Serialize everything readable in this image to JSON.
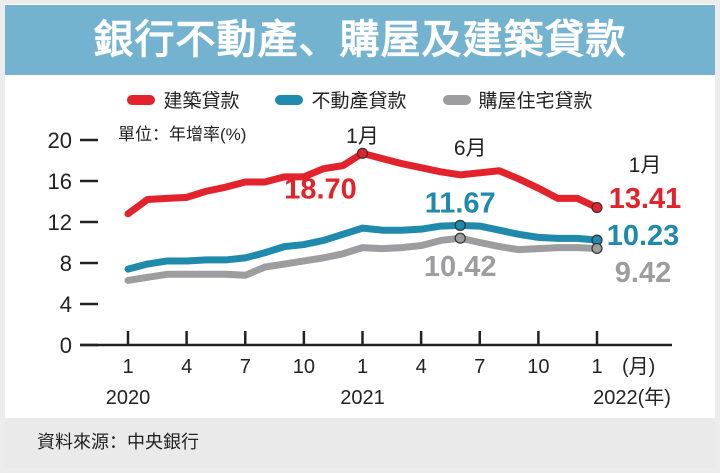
{
  "title": "銀行不動產、購屋及建築貸款",
  "footer": "資料來源：中央銀行",
  "chart_data": {
    "type": "line",
    "title": "銀行不動產、購屋及建築貸款",
    "unit_label": "單位：年增率(%)",
    "ylim": [
      0,
      20
    ],
    "yticks": [
      0,
      4,
      8,
      12,
      16,
      20
    ],
    "ytick_labels": [
      "0",
      "4",
      "8",
      "12",
      "16",
      "20"
    ],
    "x": [
      "2020-01",
      "2020-02",
      "2020-03",
      "2020-04",
      "2020-05",
      "2020-06",
      "2020-07",
      "2020-08",
      "2020-09",
      "2020-10",
      "2020-11",
      "2020-12",
      "2021-01",
      "2021-02",
      "2021-03",
      "2021-04",
      "2021-05",
      "2021-06",
      "2021-07",
      "2021-08",
      "2021-09",
      "2021-10",
      "2021-11",
      "2021-12",
      "2022-01"
    ],
    "xticks": [
      {
        "index": 0,
        "label": "1"
      },
      {
        "index": 3,
        "label": "4"
      },
      {
        "index": 6,
        "label": "7"
      },
      {
        "index": 9,
        "label": "10"
      },
      {
        "index": 12,
        "label": "1"
      },
      {
        "index": 15,
        "label": "4"
      },
      {
        "index": 18,
        "label": "7"
      },
      {
        "index": 21,
        "label": "10"
      },
      {
        "index": 24,
        "label": "1"
      }
    ],
    "x_unit": "(月)",
    "years": [
      {
        "index": 0,
        "label": "2020"
      },
      {
        "index": 12,
        "label": "2021"
      },
      {
        "index": 24,
        "label": "2022(年)"
      }
    ],
    "legend_position": "top-center",
    "series": [
      {
        "name": "建築貸款",
        "color": "#e3232c",
        "values": [
          12.8,
          14.2,
          14.3,
          14.4,
          15.0,
          15.4,
          15.9,
          15.9,
          16.4,
          16.4,
          17.2,
          17.5,
          18.7,
          18.2,
          17.7,
          17.3,
          16.9,
          16.6,
          16.8,
          17.0,
          16.2,
          15.3,
          14.3,
          14.3,
          13.41
        ]
      },
      {
        "name": "不動產貸款",
        "color": "#1f8aab",
        "values": [
          7.4,
          7.9,
          8.2,
          8.2,
          8.3,
          8.3,
          8.5,
          9.0,
          9.6,
          9.8,
          10.2,
          10.8,
          11.4,
          11.2,
          11.2,
          11.3,
          11.6,
          11.67,
          11.6,
          11.2,
          10.8,
          10.5,
          10.4,
          10.4,
          10.23
        ]
      },
      {
        "name": "購屋住宅貸款",
        "color": "#9d9d9f",
        "values": [
          6.3,
          6.6,
          6.9,
          6.9,
          6.9,
          6.9,
          6.8,
          7.6,
          7.9,
          8.2,
          8.5,
          8.9,
          9.5,
          9.4,
          9.5,
          9.7,
          10.2,
          10.42,
          10.0,
          9.6,
          9.3,
          9.4,
          9.5,
          9.5,
          9.42
        ]
      }
    ],
    "annotations": [
      {
        "series": 0,
        "index": 12,
        "label": "18.70",
        "month_label": "1月"
      },
      {
        "series": 1,
        "index": 17,
        "label": "11.67",
        "month_label": "6月"
      },
      {
        "series": 2,
        "index": 17,
        "label": "10.42"
      },
      {
        "series": 0,
        "index": 24,
        "label": "13.41",
        "month_label": "1月"
      },
      {
        "series": 1,
        "index": 24,
        "label": "10.23"
      },
      {
        "series": 2,
        "index": 24,
        "label": "9.42"
      }
    ]
  }
}
